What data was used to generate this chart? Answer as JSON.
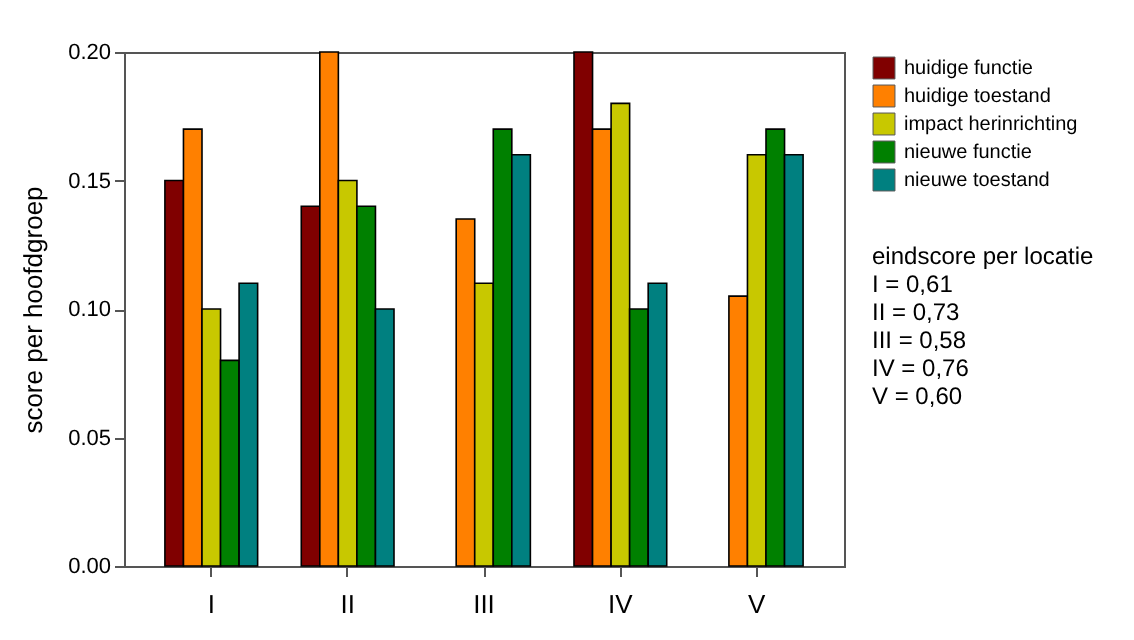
{
  "chart_data": {
    "type": "bar",
    "ylabel": "score per hoofdgroep",
    "categories": [
      "I",
      "II",
      "III",
      "IV",
      "V"
    ],
    "series": [
      {
        "name": "huidige functie",
        "color": "#800000",
        "values": [
          0.15,
          0.14,
          null,
          0.2,
          null
        ]
      },
      {
        "name": "huidige toestand",
        "color": "#ff8000",
        "values": [
          0.17,
          0.2,
          0.135,
          0.17,
          0.105
        ]
      },
      {
        "name": "impact herinrichting",
        "color": "#c8c800",
        "values": [
          0.1,
          0.15,
          0.11,
          0.18,
          0.16
        ]
      },
      {
        "name": "nieuwe functie",
        "color": "#008000",
        "values": [
          0.08,
          0.14,
          0.17,
          0.1,
          0.17
        ]
      },
      {
        "name": "nieuwe toestand",
        "color": "#008080",
        "values": [
          0.11,
          0.1,
          0.16,
          0.11,
          0.16
        ]
      }
    ],
    "ylim": [
      0,
      0.2
    ],
    "yticks": [
      {
        "value": 0,
        "label": "0.00"
      },
      {
        "value": 0.05,
        "label": "0.05"
      },
      {
        "value": 0.1,
        "label": "0.10"
      },
      {
        "value": 0.15,
        "label": "0.15"
      },
      {
        "value": 0.2,
        "label": "0.20"
      }
    ],
    "grid": false,
    "legend": "right",
    "annotations": [
      "eindscore per locatie",
      "I = 0,61",
      "II = 0,73",
      "III = 0,58",
      "IV = 0,76",
      "V = 0,60"
    ]
  }
}
